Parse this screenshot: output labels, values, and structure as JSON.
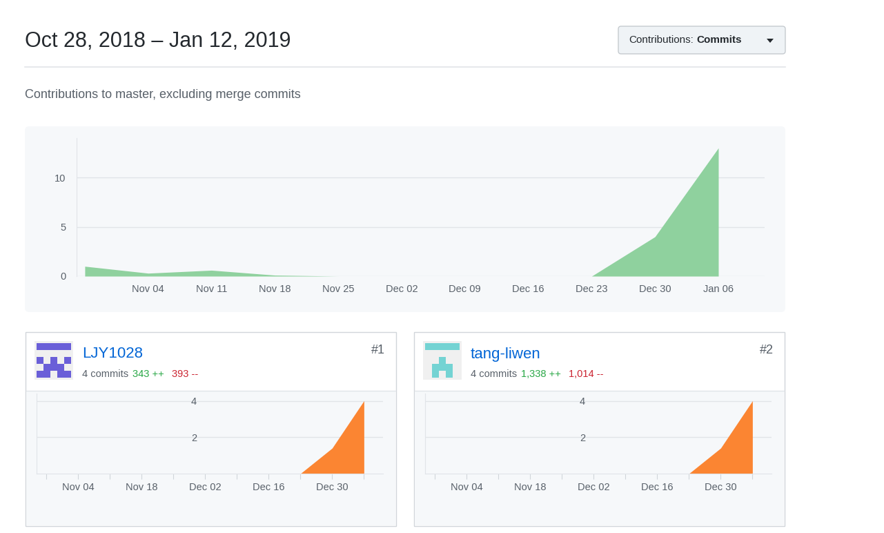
{
  "header": {
    "title": "Oct 28, 2018 – Jan 12, 2019",
    "subtitle": "Contributions to master, excluding merge commits"
  },
  "dropdown": {
    "label": "Contributions:",
    "value": "Commits"
  },
  "contributors": [
    {
      "rank": "#1",
      "name": "LJY1028",
      "commits": "4 commits",
      "additions": "343 ++",
      "deletions": "393 --"
    },
    {
      "rank": "#2",
      "name": "tang-liwen",
      "commits": "4 commits",
      "additions": "1,338 ++",
      "deletions": "1,014 --"
    }
  ],
  "chart_data": [
    {
      "type": "area",
      "categories": [
        null,
        "Nov 04",
        "Nov 11",
        "Nov 18",
        "Nov 25",
        "Dec 02",
        "Dec 09",
        "Dec 16",
        "Dec 23",
        "Dec 30",
        "Jan 06"
      ],
      "values": [
        1.0,
        0.3,
        0.6,
        0.1,
        0,
        0,
        0,
        0,
        0,
        4,
        13
      ],
      "color": "#8fd19e",
      "ylim": [
        0,
        14
      ],
      "yticks": [
        0,
        5,
        10
      ],
      "grid": true
    },
    {
      "type": "area",
      "categories": [
        null,
        "Nov 04",
        null,
        "Nov 18",
        null,
        "Dec 02",
        null,
        "Dec 16",
        null,
        "Dec 30",
        null
      ],
      "values": [
        0,
        0,
        0,
        0,
        0,
        0,
        0,
        0,
        0,
        1.4,
        4
      ],
      "color": "#fb8532",
      "ylim": [
        0,
        4.4
      ],
      "yticks": [
        2,
        4
      ],
      "grid": true
    },
    {
      "type": "area",
      "categories": [
        null,
        "Nov 04",
        null,
        "Nov 18",
        null,
        "Dec 02",
        null,
        "Dec 16",
        null,
        "Dec 30",
        null
      ],
      "values": [
        0,
        0,
        0,
        0,
        0,
        0,
        0,
        0,
        0,
        1.4,
        4
      ],
      "color": "#fb8532",
      "ylim": [
        0,
        4.4
      ],
      "yticks": [
        2,
        4
      ],
      "grid": true
    }
  ]
}
